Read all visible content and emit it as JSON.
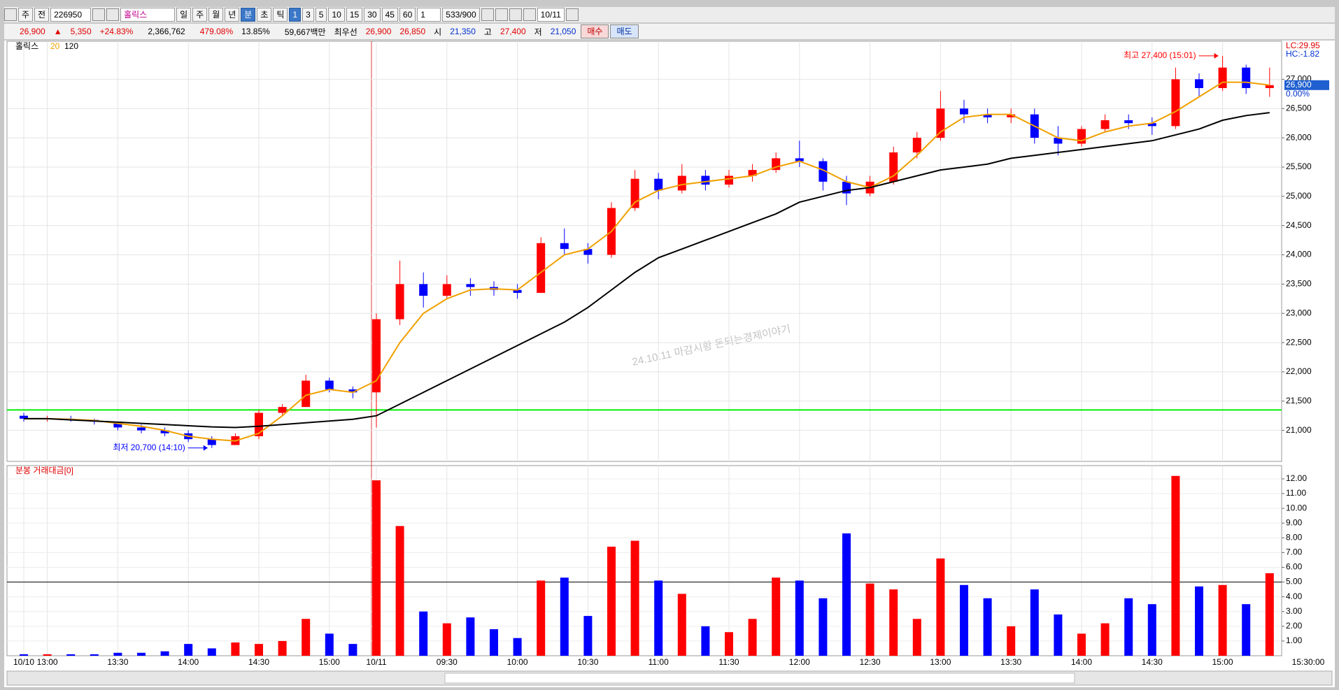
{
  "toolbar": {
    "row1": [
      "주",
      "전",
      "226950",
      "홀릭스",
      "일",
      "주",
      "월",
      "년",
      "분",
      "초",
      "틱",
      "1",
      "3",
      "5",
      "10",
      "15",
      "30",
      "45",
      "60",
      "1",
      "533/900",
      "10/11"
    ],
    "quote": {
      "price": "26,900",
      "arrow": "▲",
      "change": "5,350",
      "change_rate": "+24.83%",
      "volume": "2,366,762",
      "volume_rate": "479.08%",
      "turnover": "13.85%",
      "amount": "59,667백만",
      "best_label": "최우선",
      "best_ask": "26,900",
      "best_bid": "26,850",
      "open_label": "시",
      "open": "21,350",
      "high_label": "고",
      "high": "27,400",
      "low_label": "저",
      "low": "21,050",
      "buy": "매수",
      "sell": "매도"
    }
  },
  "chart_data": [
    {
      "type": "candlestick",
      "name": "홀릭스",
      "up_color": "#ff0000",
      "down_color": "#0000ff",
      "open": [
        21250,
        21200,
        21200,
        21180,
        21150,
        21050,
        21000,
        20950,
        20850,
        20750,
        20900,
        21300,
        21400,
        21850,
        21700,
        21650,
        22900,
        23500,
        23300,
        23500,
        23450,
        23400,
        23350,
        24200,
        24100,
        24000,
        24800,
        25300,
        25100,
        25350,
        25200,
        25350,
        25450,
        25650,
        25600,
        25250,
        25050,
        25250,
        25750,
        26000,
        26500,
        26400,
        26350,
        26400,
        26000,
        25900,
        26150,
        26300,
        26250,
        26200,
        27000,
        26850,
        27200,
        26850
      ],
      "high": [
        21300,
        21250,
        21250,
        21200,
        21150,
        21100,
        21050,
        21000,
        20900,
        20950,
        21350,
        21450,
        21950,
        21900,
        21750,
        23000,
        23900,
        23700,
        23650,
        23600,
        23550,
        23500,
        24300,
        24450,
        24200,
        24900,
        25450,
        25400,
        25550,
        25450,
        25450,
        25550,
        25750,
        25950,
        25650,
        25350,
        25350,
        25850,
        26100,
        26800,
        26650,
        26500,
        26500,
        26500,
        26200,
        26200,
        26400,
        26400,
        26350,
        27200,
        27100,
        27400,
        27250,
        27200
      ],
      "low": [
        21150,
        21150,
        21150,
        21100,
        21000,
        20950,
        20900,
        20800,
        20700,
        20750,
        20850,
        21250,
        21400,
        21650,
        21550,
        21050,
        22800,
        23100,
        23250,
        23300,
        23300,
        23250,
        23350,
        24000,
        23850,
        23950,
        24750,
        24950,
        25050,
        25100,
        25150,
        25250,
        25400,
        25500,
        25100,
        24850,
        25000,
        25200,
        25650,
        25950,
        26250,
        26250,
        26250,
        25900,
        25700,
        25850,
        26100,
        26150,
        26050,
        26150,
        26700,
        26800,
        26750,
        26700
      ],
      "close": [
        21200,
        21200,
        21180,
        21150,
        21050,
        21000,
        20950,
        20850,
        20750,
        20900,
        21300,
        21400,
        21850,
        21700,
        21650,
        22900,
        23500,
        23300,
        23500,
        23450,
        23400,
        23350,
        24200,
        24100,
        24000,
        24800,
        25300,
        25100,
        25350,
        25200,
        25350,
        25450,
        25650,
        25600,
        25250,
        25050,
        25250,
        25750,
        26000,
        26500,
        26400,
        26350,
        26400,
        26000,
        25900,
        26150,
        26300,
        26250,
        26200,
        27000,
        26850,
        27200,
        26850,
        26900
      ],
      "lines": [
        {
          "name": "20",
          "color": "#f0a000",
          "values": [
            21200,
            21200,
            21190,
            21170,
            21120,
            21070,
            21000,
            20900,
            20850,
            20820,
            20950,
            21250,
            21600,
            21700,
            21650,
            21850,
            22500,
            23000,
            23250,
            23400,
            23420,
            23400,
            23700,
            24000,
            24100,
            24400,
            24900,
            25100,
            25200,
            25250,
            25300,
            25350,
            25500,
            25600,
            25450,
            25250,
            25150,
            25350,
            25700,
            26100,
            26350,
            26400,
            26400,
            26200,
            26000,
            25950,
            26100,
            26200,
            26250,
            26450,
            26700,
            26950,
            26950,
            26900
          ]
        },
        {
          "name": "120",
          "color": "#000000",
          "values": [
            21200,
            21200,
            21180,
            21160,
            21140,
            21120,
            21100,
            21080,
            21060,
            21050,
            21070,
            21100,
            21130,
            21160,
            21190,
            21250,
            21450,
            21650,
            21850,
            22050,
            22250,
            22450,
            22650,
            22850,
            23100,
            23400,
            23700,
            23950,
            24100,
            24250,
            24400,
            24550,
            24700,
            24900,
            25000,
            25100,
            25150,
            25250,
            25350,
            25450,
            25500,
            25550,
            25650,
            25700,
            25750,
            25800,
            25850,
            25900,
            25950,
            26050,
            26150,
            26300,
            26380,
            26430
          ]
        }
      ],
      "ylim": [
        20470,
        27650
      ],
      "yticks": [
        {
          "value": 21000,
          "label": "21,000"
        },
        {
          "value": 21500,
          "label": "21,500"
        },
        {
          "value": 22000,
          "label": "22,000"
        },
        {
          "value": 22500,
          "label": "22,500"
        },
        {
          "value": 23000,
          "label": "23,000"
        },
        {
          "value": 23500,
          "label": "23,500"
        },
        {
          "value": 24000,
          "label": "24,000"
        },
        {
          "value": 24500,
          "label": "24,500"
        },
        {
          "value": 25000,
          "label": "25,000"
        },
        {
          "value": 25500,
          "label": "25,500"
        },
        {
          "value": 26000,
          "label": "26,000"
        },
        {
          "value": 26500,
          "label": "26,500"
        },
        {
          "value": 27000,
          "label": "27,000"
        }
      ],
      "grid": true,
      "reference_line": {
        "value": 21350,
        "color": "#00ee00"
      },
      "annotations": [
        {
          "label": "최고 27,400 (15:01)",
          "value": 27400,
          "anchor": "high",
          "color": "#ff0000"
        },
        {
          "label": "최저 20,700 (14:10)",
          "value": 20700,
          "anchor": "low",
          "color": "#0000ff"
        }
      ],
      "watermark": "24.10.11 마감시황 돈되는경제이야기",
      "lc_label": "LC:29.95",
      "hc_label": "HC:-1.82",
      "last_price": {
        "value": 26900,
        "label": "26,900"
      },
      "last_change": "0.00%"
    },
    {
      "type": "bar",
      "title": "분봉 거래대금[0]",
      "categories": [
        "10/10",
        "13:00",
        null,
        null,
        "13:30",
        null,
        null,
        "14:00",
        null,
        null,
        "14:30",
        null,
        null,
        "15:00",
        null,
        "10/11",
        null,
        null,
        "09:30",
        null,
        null,
        "10:00",
        null,
        null,
        "10:30",
        null,
        null,
        "11:00",
        null,
        null,
        "11:30",
        null,
        null,
        "12:00",
        null,
        null,
        "12:30",
        null,
        null,
        "13:00",
        null,
        null,
        "13:30",
        null,
        null,
        "14:00",
        null,
        null,
        "14:30",
        null,
        null,
        "15:00",
        null,
        null
      ],
      "axis_end_label": "15:30:00",
      "values": [
        0.1,
        0.1,
        0.1,
        0.1,
        0.2,
        0.2,
        0.3,
        0.8,
        0.5,
        0.9,
        0.8,
        1.0,
        2.5,
        1.5,
        0.8,
        11.9,
        8.8,
        3.0,
        2.2,
        2.6,
        1.8,
        1.2,
        5.1,
        5.3,
        2.7,
        7.4,
        7.8,
        5.1,
        4.2,
        2.0,
        1.6,
        2.5,
        5.3,
        5.1,
        3.9,
        8.3,
        4.9,
        4.5,
        2.5,
        6.6,
        4.8,
        3.9,
        2.0,
        4.5,
        2.8,
        1.5,
        2.2,
        3.9,
        3.5,
        12.2,
        4.7,
        4.8,
        3.5,
        5.6
      ],
      "ylim": [
        0,
        12.9
      ],
      "yticks": [
        {
          "value": 1,
          "label": "1.00"
        },
        {
          "value": 2,
          "label": "2.00"
        },
        {
          "value": 3,
          "label": "3.00"
        },
        {
          "value": 4,
          "label": "4.00"
        },
        {
          "value": 5,
          "label": "5.00"
        },
        {
          "value": 6,
          "label": "6.00"
        },
        {
          "value": 7,
          "label": "7.00"
        },
        {
          "value": 8,
          "label": "8.00"
        },
        {
          "value": 9,
          "label": "9.00"
        },
        {
          "value": 10,
          "label": "10.00"
        },
        {
          "value": 11,
          "label": "11.00"
        },
        {
          "value": 12,
          "label": "12.00"
        }
      ],
      "grid": true,
      "reference_line": {
        "value": 5,
        "color": "#000000"
      }
    }
  ]
}
